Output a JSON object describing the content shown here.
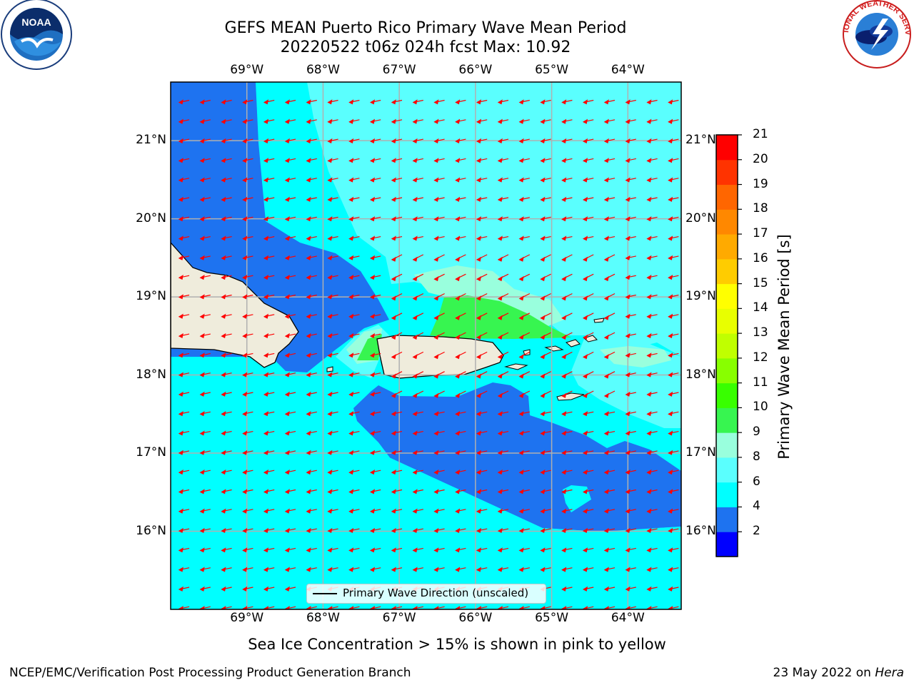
{
  "title": {
    "line1": "GEFS MEAN Puerto Rico Primary Wave Mean Period",
    "line2": "20220522 t06z 024h fcst   Max: 10.92"
  },
  "logos": {
    "left": {
      "icon": "noaa-logo",
      "text": "NOAA"
    },
    "right": {
      "icon": "nws-logo",
      "text": "NATIONAL WEATHER SERVICE"
    }
  },
  "map": {
    "lon_ticks": [
      "69°W",
      "68°W",
      "67°W",
      "66°W",
      "65°W",
      "64°W"
    ],
    "lat_ticks": [
      "21°N",
      "20°N",
      "19°N",
      "18°N",
      "17°N",
      "16°N"
    ],
    "lon_range": [
      -70,
      -63.3
    ],
    "lat_range": [
      15,
      21.75
    ],
    "land_color": "#efecdc",
    "arrow_color": "#ff0000",
    "grid": true
  },
  "legend": {
    "label": "Primary Wave Direction (unscaled)"
  },
  "colorbar": {
    "title": "Primary Wave Mean Period [s]",
    "labels": [
      "21",
      "20",
      "19",
      "18",
      "17",
      "16",
      "15",
      "14",
      "13",
      "12",
      "11",
      "10",
      "9",
      "8",
      "6",
      "4",
      "2"
    ],
    "bounds": [
      2,
      4,
      6,
      8,
      9,
      10,
      11,
      12,
      13,
      14,
      15,
      16,
      17,
      18,
      19,
      20,
      21
    ],
    "colors": [
      "#0000ff",
      "#1e73f0",
      "#00ffff",
      "#5afffe",
      "#99ffdd",
      "#37f550",
      "#38ff00",
      "#88ff00",
      "#c0ff00",
      "#e8ff00",
      "#ffff00",
      "#ffcc00",
      "#ffaa00",
      "#ff8800",
      "#ff6600",
      "#ff3300",
      "#ff0000"
    ]
  },
  "sea_ice_note": "Sea Ice Concentration > 15% is shown in pink to yellow",
  "footer": {
    "left": "NCEP/EMC/Verification Post Processing Product Generation Branch",
    "right_date": "23 May 2022 on ",
    "right_host": "Hera"
  }
}
